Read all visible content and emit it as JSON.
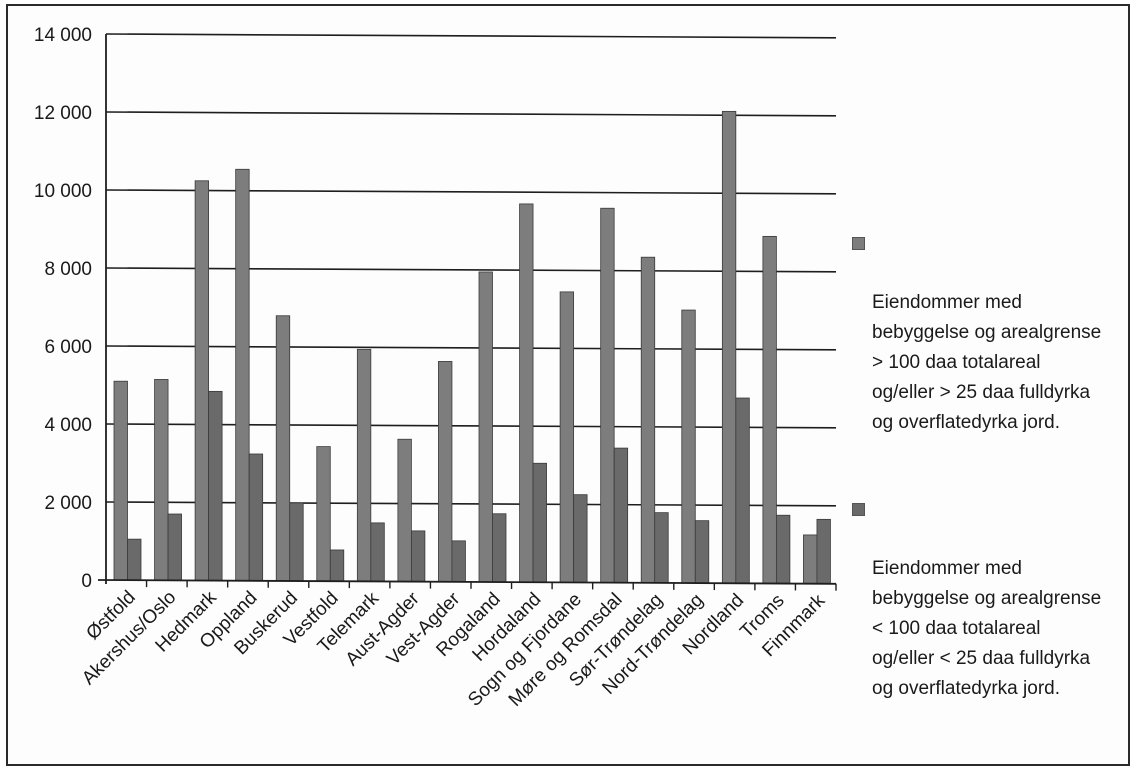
{
  "chart_data": {
    "type": "bar",
    "title": "",
    "xlabel": "",
    "ylabel": "",
    "ylim": [
      0,
      14000
    ],
    "yticks": [
      0,
      2000,
      4000,
      6000,
      8000,
      10000,
      12000,
      14000
    ],
    "ytick_labels": [
      "0",
      "2 000",
      "4 000",
      "6 000",
      "8 000",
      "10 000",
      "12 000",
      "14 000"
    ],
    "grid": true,
    "legend_position": "right",
    "categories": [
      "Østfold",
      "Akershus/Oslo",
      "Hedmark",
      "Oppland",
      "Buskerud",
      "Vestfold",
      "Telemark",
      "Aust-Agder",
      "Vest-Agder",
      "Rogaland",
      "Hordaland",
      "Sogn og Fjordane",
      "Møre og Romsdal",
      "Sør-Trøndelag",
      "Nord-Trøndelag",
      "Nordland",
      "Troms",
      "Finnmark"
    ],
    "series": [
      {
        "name": "Eiendommer med bebyggelse og arealgrense > 100 daa totalareal og/eller > 25 daa fulldyrka og overflatedyrka jord.",
        "color": "#7d7d7d",
        "values": [
          5100,
          5150,
          10250,
          10550,
          6800,
          3450,
          5950,
          3650,
          5650,
          7950,
          9700,
          7450,
          9600,
          8350,
          7000,
          12100,
          8900,
          1250
        ]
      },
      {
        "name": "Eiendommer med bebyggelse og arealgrense < 100 daa totalareal og/eller < 25 daa fulldyrka og overflatedyrka jord.",
        "color": "#6a6a6a",
        "values": [
          1050,
          1700,
          4850,
          3250,
          2000,
          800,
          1500,
          1300,
          1050,
          1750,
          3050,
          2250,
          3450,
          1800,
          1600,
          4750,
          1750,
          1650
        ]
      }
    ]
  },
  "legend": {
    "entries": [
      "Eiendommer med\nbebyggelse og arealgrense\n> 100 daa totalareal\nog/eller > 25 daa fulldyrka\nog overflatedyrka jord.",
      "Eiendommer med\nbebyggelse og arealgrense\n< 100 daa totalareal\nog/eller < 25 daa fulldyrka\nog overflatedyrka jord."
    ]
  }
}
